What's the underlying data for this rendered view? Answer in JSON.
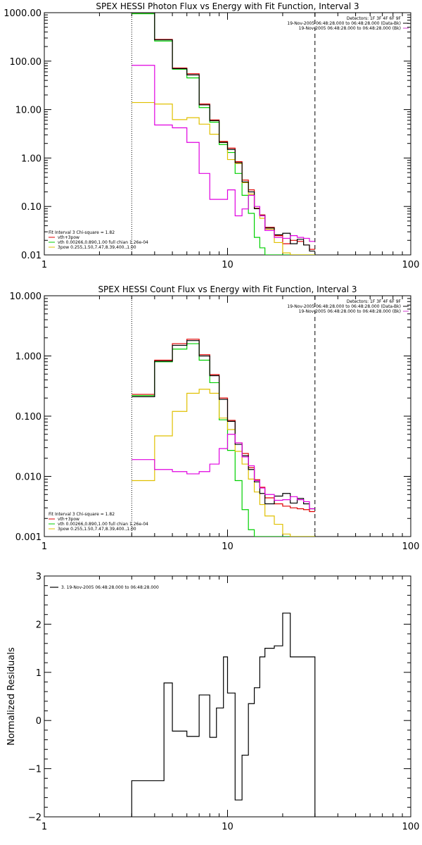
{
  "colors": {
    "data": "#000000",
    "total": "#e00000",
    "thermal": "#00d000",
    "powerlaw": "#e0c000",
    "background": "#e000e0",
    "bg_legend": "#d040d0",
    "frame": "#000000"
  },
  "chart_data": [
    {
      "type": "line",
      "step": true,
      "title": "SPEX HESSI Photon Flux vs Energy with Fit Function, Interval 3",
      "xlabel": "",
      "ylabel": "",
      "xscale": "log",
      "yscale": "log",
      "xlim": [
        1,
        100
      ],
      "ylim": [
        0.01,
        1000
      ],
      "xticks": [
        {
          "v": 1,
          "label": "1"
        },
        {
          "v": 10,
          "label": "10"
        },
        {
          "v": 100,
          "label": "100"
        }
      ],
      "yticks": [
        {
          "v": 1000,
          "label": "1000.00"
        },
        {
          "v": 100,
          "label": "100.00"
        },
        {
          "v": 10,
          "label": "10.00"
        },
        {
          "v": 1,
          "label": "1.00"
        },
        {
          "v": 0.1,
          "label": "0.10"
        },
        {
          "v": 0.01,
          "label": "0.01"
        }
      ],
      "vlines": [
        {
          "x": 3.0,
          "style": "dotted",
          "color": "data"
        },
        {
          "x": 30.0,
          "style": "dashed",
          "color": "data"
        }
      ],
      "info_lines": [
        {
          "text": "Detectors: 1F 3F 4F 6F 9F",
          "color": "data"
        },
        {
          "text": "19-Nov-2005 06:48:28.000 to 06:48:28.000 (Data-Bk)",
          "color": "data"
        },
        {
          "text": "19-Nov-2005 06:48:28.000 to 06:48:28.000 (Bk)",
          "color": "bg_legend"
        }
      ],
      "legend": [
        {
          "text": "Fit Interval 3   Chi-square = 1.82",
          "color": null
        },
        {
          "text": "vth+3pow",
          "color": "total"
        },
        {
          "text": "vth 0.00266,0.890,1.00   full chian 1.26e-04",
          "color": "thermal"
        },
        {
          "text": "3pow 0.255,1.50,7.47,8.39,400.,1.00",
          "color": "powerlaw"
        }
      ],
      "edges": [
        3.0,
        4.0,
        5.0,
        6.0,
        7.0,
        8.0,
        9.0,
        10.0,
        11.0,
        12.0,
        13.0,
        14.0,
        15.0,
        16.0,
        18.0,
        20.0,
        22.0,
        24.0,
        26.0,
        28.0,
        30.0
      ],
      "series": [
        {
          "name": "vth+3pow",
          "color": "total",
          "values": [
            1000,
            280,
            72,
            55,
            13,
            6.1,
            2.2,
            1.6,
            0.84,
            0.35,
            0.22,
            0.092,
            0.067,
            0.037,
            0.025,
            0.017,
            0.02,
            0.019,
            0.016,
            0.013
          ]
        },
        {
          "name": "vth",
          "color": "thermal",
          "values": [
            950,
            260,
            68,
            45,
            11,
            5.5,
            1.9,
            1.3,
            0.48,
            0.17,
            0.072,
            0.023,
            0.014,
            0.01,
            0.01,
            0.01,
            0.01,
            0.01,
            0.01,
            0.01
          ]
        },
        {
          "name": "3pow",
          "color": "powerlaw",
          "values": [
            14,
            13,
            6.2,
            6.8,
            5.0,
            3.1,
            2.1,
            0.93,
            0.77,
            0.31,
            0.18,
            0.09,
            0.057,
            0.034,
            0.018,
            0.011,
            0.01,
            0.01,
            0.01,
            0.01
          ]
        },
        {
          "name": "",
          "color": "data",
          "values": [
            1000,
            275,
            70,
            52,
            12.5,
            5.9,
            2.1,
            1.5,
            0.8,
            0.32,
            0.2,
            0.09,
            0.065,
            0.036,
            0.026,
            0.028,
            0.017,
            0.021,
            0.016,
            0.012
          ]
        },
        {
          "name": "",
          "color": "background",
          "values": [
            82,
            4.8,
            4.2,
            2.1,
            0.48,
            0.14,
            0.14,
            0.22,
            0.064,
            0.089,
            0.17,
            0.1,
            0.064,
            0.032,
            0.023,
            0.022,
            0.025,
            0.023,
            0.022,
            0.019
          ]
        }
      ]
    },
    {
      "type": "line",
      "step": true,
      "title": "SPEX HESSI Count Flux vs Energy with Fit Function, Interval 3",
      "xlabel": "",
      "ylabel": "",
      "xscale": "log",
      "yscale": "log",
      "xlim": [
        1,
        100
      ],
      "ylim": [
        0.001,
        10
      ],
      "xticks": [
        {
          "v": 1,
          "label": "1"
        },
        {
          "v": 10,
          "label": "10"
        },
        {
          "v": 100,
          "label": "100"
        }
      ],
      "yticks": [
        {
          "v": 10,
          "label": "10.000"
        },
        {
          "v": 1,
          "label": "1.000"
        },
        {
          "v": 0.1,
          "label": "0.100"
        },
        {
          "v": 0.01,
          "label": "0.010"
        },
        {
          "v": 0.001,
          "label": "0.001"
        }
      ],
      "vlines": [
        {
          "x": 3.0,
          "style": "dotted",
          "color": "data"
        },
        {
          "x": 30.0,
          "style": "dashed",
          "color": "data"
        }
      ],
      "info_lines": [
        {
          "text": "Detectors: 1F 3F 4F 6F 9F",
          "color": "data"
        },
        {
          "text": "19-Nov-2005 06:48:28.000 to 06:48:28.000 (Data-Bk)",
          "color": "data"
        },
        {
          "text": "19-Nov-2005 06:48:28.000 to 06:48:28.000 (Bk)",
          "color": "bg_legend"
        }
      ],
      "legend": [
        {
          "text": "Fit Interval 3   Chi-square = 1.82",
          "color": null
        },
        {
          "text": "vth+3pow",
          "color": "total"
        },
        {
          "text": "vth 0.00266,0.890,1.00   full chian 1.26e-04",
          "color": "thermal"
        },
        {
          "text": "3pow 0.255,1.50,7.47,8.39,400.,1.00",
          "color": "powerlaw"
        }
      ],
      "edges": [
        3.0,
        4.0,
        5.0,
        6.0,
        7.0,
        8.0,
        9.0,
        10.0,
        11.0,
        12.0,
        13.0,
        14.0,
        15.0,
        16.0,
        18.0,
        20.0,
        22.0,
        24.0,
        26.0,
        28.0,
        30.0
      ],
      "series": [
        {
          "name": "vth+3pow",
          "color": "total",
          "values": [
            0.23,
            0.85,
            1.6,
            1.9,
            1.05,
            0.49,
            0.2,
            0.085,
            0.036,
            0.024,
            0.014,
            0.0088,
            0.0066,
            0.0044,
            0.0035,
            0.0032,
            0.003,
            0.0029,
            0.0028,
            0.0026
          ]
        },
        {
          "name": "vth",
          "color": "thermal",
          "values": [
            0.22,
            0.8,
            1.3,
            1.6,
            0.85,
            0.36,
            0.087,
            0.027,
            0.0085,
            0.0028,
            0.0013,
            0.001,
            0.001,
            0.001,
            0.001,
            0.001,
            0.001,
            0.001,
            0.001,
            0.001
          ]
        },
        {
          "name": "3pow",
          "color": "powerlaw",
          "values": [
            0.0085,
            0.047,
            0.12,
            0.24,
            0.28,
            0.24,
            0.093,
            0.06,
            0.026,
            0.016,
            0.009,
            0.0055,
            0.0034,
            0.0022,
            0.0016,
            0.0011,
            0.001,
            0.001,
            0.001,
            0.001
          ]
        },
        {
          "name": "",
          "color": "data",
          "values": [
            0.21,
            0.82,
            1.5,
            1.8,
            1.0,
            0.47,
            0.19,
            0.082,
            0.034,
            0.022,
            0.013,
            0.0081,
            0.0052,
            0.0035,
            0.0047,
            0.0052,
            0.0036,
            0.0043,
            0.0035,
            0.0029
          ]
        },
        {
          "name": "",
          "color": "background",
          "values": [
            0.019,
            0.013,
            0.012,
            0.011,
            0.012,
            0.016,
            0.029,
            0.05,
            0.036,
            0.021,
            0.015,
            0.0085,
            0.0064,
            0.005,
            0.004,
            0.0041,
            0.0046,
            0.0041,
            0.0038,
            0.0029
          ]
        }
      ]
    },
    {
      "type": "line",
      "step": true,
      "title": "",
      "xlabel": "",
      "ylabel": "Normalized Residuals",
      "xscale": "log",
      "yscale": "linear",
      "xlim": [
        1,
        100
      ],
      "ylim": [
        -2,
        3
      ],
      "xticks": [
        {
          "v": 1,
          "label": "1"
        },
        {
          "v": 10,
          "label": "10"
        },
        {
          "v": 100,
          "label": "100"
        }
      ],
      "yticks": [
        {
          "v": 3,
          "label": "3"
        },
        {
          "v": 2,
          "label": "2"
        },
        {
          "v": 1,
          "label": "1"
        },
        {
          "v": 0,
          "label": "0"
        },
        {
          "v": -1,
          "label": "−1"
        },
        {
          "v": -2,
          "label": "−2"
        }
      ],
      "vlines": [],
      "info_lines": [],
      "legend": [
        {
          "text": "3. 19-Nov-2005 06:48:28.000 to 06:48:28.000",
          "color": "data",
          "swatch": true
        }
      ],
      "edges": [
        3.0,
        3.5,
        4.5,
        5.0,
        6.0,
        7.0,
        8.0,
        8.7,
        9.5,
        10.0,
        11.0,
        12.0,
        13.0,
        14.0,
        15.0,
        16.0,
        18.0,
        20.0,
        22.0,
        24.0,
        26.0,
        28.0,
        30.0
      ],
      "series": [
        {
          "name": "",
          "color": "data",
          "values": [
            -1.25,
            -1.25,
            0.78,
            -0.22,
            -0.33,
            0.53,
            -0.35,
            0.26,
            1.32,
            0.57,
            -1.65,
            -0.72,
            0.35,
            0.68,
            1.32,
            1.5,
            1.55,
            2.23,
            1.32,
            1.32,
            1.32,
            1.32
          ],
          "drop_to": -2.0
        }
      ]
    }
  ]
}
